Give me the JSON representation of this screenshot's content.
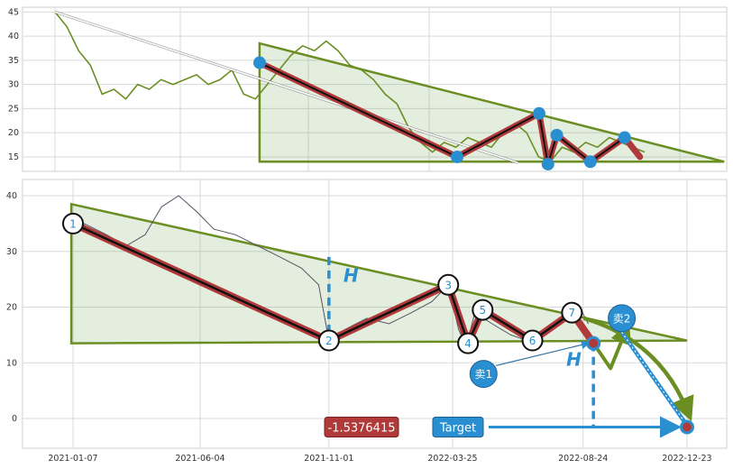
{
  "chart_data": [
    {
      "type": "line",
      "panel": "overview",
      "xlabel": "",
      "ylabel": "",
      "ylim": [
        12,
        46
      ],
      "yticks": [
        "15",
        "20",
        "25",
        "30",
        "35",
        "40",
        "45"
      ],
      "grid": true,
      "series": [
        {
          "values": [
            [
              0,
              45
            ],
            [
              2,
              42
            ],
            [
              4,
              37
            ],
            [
              6,
              34
            ],
            [
              8,
              28
            ],
            [
              10,
              29
            ],
            [
              12,
              27
            ],
            [
              14,
              30
            ],
            [
              16,
              29
            ],
            [
              18,
              31
            ],
            [
              20,
              30
            ],
            [
              22,
              31
            ],
            [
              24,
              32
            ],
            [
              26,
              30
            ],
            [
              28,
              31
            ],
            [
              30,
              33
            ],
            [
              32,
              28
            ],
            [
              34,
              27
            ],
            [
              36,
              30
            ],
            [
              38,
              33
            ],
            [
              40,
              36
            ],
            [
              42,
              38
            ],
            [
              44,
              37
            ],
            [
              46,
              39
            ],
            [
              48,
              37
            ],
            [
              50,
              34
            ],
            [
              52,
              33
            ],
            [
              54,
              31
            ],
            [
              56,
              28
            ],
            [
              58,
              26
            ],
            [
              60,
              21
            ],
            [
              62,
              18
            ],
            [
              64,
              16
            ],
            [
              66,
              18
            ],
            [
              68,
              17
            ],
            [
              70,
              19
            ],
            [
              72,
              18
            ],
            [
              74,
              17
            ],
            [
              76,
              20
            ],
            [
              78,
              22
            ],
            [
              80,
              20
            ],
            [
              82,
              15
            ],
            [
              84,
              14
            ],
            [
              86,
              17
            ],
            [
              88,
              16
            ],
            [
              90,
              18
            ],
            [
              92,
              17
            ],
            [
              94,
              19
            ],
            [
              96,
              18
            ],
            [
              98,
              17
            ],
            [
              100,
              16
            ]
          ]
        }
      ],
      "pattern": {
        "name": "descending triangle",
        "pivots": [
          [
            34.7,
            34.5
          ],
          [
            68.2,
            15
          ],
          [
            82.1,
            24
          ],
          [
            83.6,
            13.5
          ],
          [
            85.1,
            19.5
          ],
          [
            90.8,
            14
          ],
          [
            96.6,
            19
          ]
        ],
        "resistance": [
          [
            34.7,
            38.5
          ],
          [
            113.5,
            14
          ]
        ],
        "support_y": 14
      }
    },
    {
      "type": "line",
      "panel": "detail",
      "xlabel": "",
      "ylabel": "",
      "ylim": [
        -5,
        43
      ],
      "yticks": [
        "0",
        "10",
        "20",
        "30",
        "40"
      ],
      "xticks": [
        "2021-01-07",
        "2021-06-04",
        "2021-11-01",
        "2022-03-25",
        "2022-08-24",
        "2022-12-23"
      ],
      "grid": true,
      "series": [
        {
          "values": [
            [
              "2021-01-01",
              34
            ],
            [
              "2021-01-20",
              35
            ],
            [
              "2021-02-15",
              33
            ],
            [
              "2021-03-10",
              31
            ],
            [
              "2021-04-01",
              33
            ],
            [
              "2021-04-20",
              38
            ],
            [
              "2021-05-10",
              40
            ],
            [
              "2021-06-01",
              37
            ],
            [
              "2021-06-20",
              34
            ],
            [
              "2021-07-15",
              33
            ],
            [
              "2021-08-10",
              31
            ],
            [
              "2021-09-05",
              29
            ],
            [
              "2021-09-30",
              27
            ],
            [
              "2021-10-20",
              24
            ],
            [
              "2021-11-01",
              14
            ],
            [
              "2021-11-20",
              16
            ],
            [
              "2021-12-15",
              18
            ],
            [
              "2022-01-10",
              17
            ],
            [
              "2022-02-05",
              19
            ],
            [
              "2022-03-01",
              21
            ],
            [
              "2022-03-20",
              24
            ],
            [
              "2022-04-01",
              16
            ],
            [
              "2022-04-10",
              13
            ],
            [
              "2022-04-20",
              19
            ],
            [
              "2022-05-10",
              17
            ],
            [
              "2022-06-01",
              15
            ],
            [
              "2022-06-20",
              14
            ],
            [
              "2022-07-15",
              16
            ],
            [
              "2022-08-05",
              19
            ],
            [
              "2022-08-20",
              20
            ],
            [
              "2022-08-30",
              17
            ]
          ]
        }
      ],
      "pattern": {
        "name": "descending triangle",
        "pivots": [
          {
            "label": "1",
            "date": "2021-01-07",
            "y": 35
          },
          {
            "label": "2",
            "date": "2021-11-01",
            "y": 14
          },
          {
            "label": "3",
            "date": "2022-03-20",
            "y": 24
          },
          {
            "label": "4",
            "date": "2022-04-12",
            "y": 13.5
          },
          {
            "label": "5",
            "date": "2022-04-29",
            "y": 19.5
          },
          {
            "label": "6",
            "date": "2022-06-26",
            "y": 14
          },
          {
            "label": "7",
            "date": "2022-08-11",
            "y": 19
          }
        ],
        "resistance": [
          [
            "2021-01-05",
            38.5
          ],
          [
            "2022-12-23",
            14
          ]
        ],
        "support_y": 13.5,
        "height_label": "H",
        "sell_points": [
          {
            "label": "卖1",
            "date": "2022-04-30",
            "y": 8
          },
          {
            "label": "卖2",
            "date": "2022-10-08",
            "y": 18
          }
        ],
        "breakout": {
          "date": "2022-09-05",
          "y": 13.5
        },
        "target": {
          "date": "2022-12-23",
          "y": -1.5376415
        }
      },
      "annotations": {
        "value_box": "-1.5376415",
        "target_label": "Target"
      }
    }
  ]
}
